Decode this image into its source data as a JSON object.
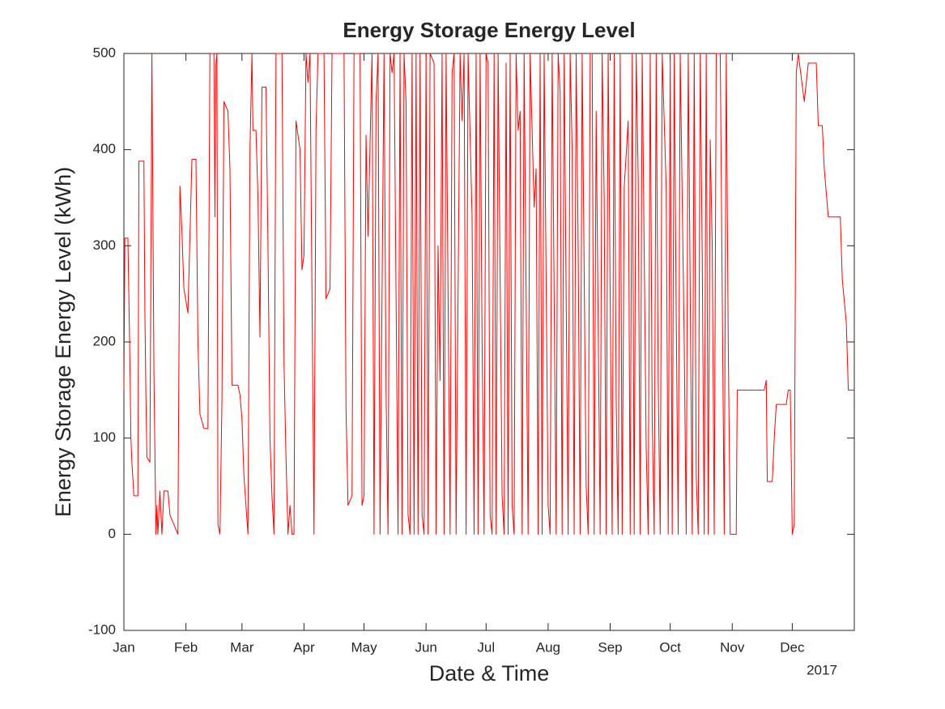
{
  "chart_data": {
    "type": "line",
    "title": "Energy Storage Energy Level",
    "xlabel": "Date & Time",
    "ylabel": "Energy Storage Energy Level (kWh)",
    "x_secondary_label": "2017",
    "color": "#ff0000",
    "xlim": [
      0,
      365
    ],
    "ylim": [
      -100,
      500
    ],
    "xticks": [
      {
        "value": 0,
        "label": "Jan"
      },
      {
        "value": 31,
        "label": "Feb"
      },
      {
        "value": 59,
        "label": "Mar"
      },
      {
        "value": 90,
        "label": "Apr"
      },
      {
        "value": 120,
        "label": "May"
      },
      {
        "value": 151,
        "label": "Jun"
      },
      {
        "value": 181,
        "label": "Jul"
      },
      {
        "value": 212,
        "label": "Aug"
      },
      {
        "value": 243,
        "label": "Sep"
      },
      {
        "value": 273,
        "label": "Oct"
      },
      {
        "value": 304,
        "label": "Nov"
      },
      {
        "value": 334,
        "label": "Dec"
      }
    ],
    "yticks": [
      -100,
      0,
      100,
      200,
      300,
      400,
      500
    ],
    "x": [
      0,
      0.5,
      2,
      3,
      3.5,
      4,
      5,
      7,
      7.5,
      10,
      10.5,
      11,
      11.5,
      13,
      14,
      15,
      16,
      16.5,
      17,
      18,
      19,
      20,
      22,
      23,
      25,
      27,
      28,
      29,
      30,
      32,
      34,
      36,
      37,
      38,
      40,
      42,
      43,
      45,
      45.5,
      46,
      46.5,
      47,
      48,
      49,
      50,
      52,
      53,
      54,
      57,
      58,
      59,
      60,
      62,
      63,
      64,
      64.5,
      66,
      67,
      68,
      69,
      71,
      72,
      73,
      74,
      75,
      76,
      79,
      80,
      81,
      82,
      83,
      84,
      85,
      86,
      88,
      89,
      90,
      91,
      92,
      93,
      95,
      96,
      97,
      100,
      101,
      103,
      104,
      110,
      111,
      112,
      114,
      115,
      118,
      119,
      120,
      121,
      122,
      124,
      125,
      126,
      127,
      128,
      130,
      131,
      132,
      133,
      134,
      135,
      137,
      138,
      139,
      140,
      141,
      142,
      143,
      144,
      145,
      146,
      147,
      148,
      149,
      150,
      151,
      152,
      153,
      155,
      156,
      157,
      158,
      159,
      160,
      161,
      163,
      164,
      165,
      166,
      168,
      169,
      170,
      171,
      172,
      174,
      175,
      176,
      177,
      178,
      179,
      180,
      181,
      182,
      183,
      184,
      185,
      186,
      187,
      189,
      190,
      191,
      192,
      193,
      194,
      195,
      196,
      197,
      198,
      199,
      200,
      202,
      203,
      205,
      206,
      207,
      208,
      209,
      210,
      212,
      213,
      214,
      216,
      217,
      218,
      219,
      220,
      222,
      223,
      224,
      225,
      226,
      227,
      228,
      229,
      231,
      232,
      233,
      234,
      235,
      236,
      238,
      239,
      240,
      241,
      242,
      244,
      245,
      246,
      247,
      248,
      249,
      250,
      252,
      253,
      254,
      255,
      256,
      257,
      258,
      259,
      261,
      262,
      263,
      264,
      265,
      266,
      267,
      268,
      269,
      271,
      272,
      273,
      274,
      275,
      276,
      277,
      278,
      280,
      281,
      282,
      284,
      285,
      286,
      287,
      288,
      289,
      290,
      291,
      292,
      293,
      294,
      295,
      296,
      298,
      300,
      301,
      302,
      303,
      306,
      306.5,
      320,
      321,
      321.5,
      324,
      325,
      326,
      331,
      332,
      333,
      334,
      335,
      336,
      337,
      340,
      342,
      346,
      347,
      349,
      350,
      352,
      358,
      359,
      361,
      362,
      365
    ],
    "values": [
      150,
      308,
      308,
      180,
      100,
      75,
      40,
      40,
      388,
      388,
      230,
      145,
      80,
      75,
      500,
      170,
      0,
      30,
      0,
      45,
      0,
      45,
      45,
      20,
      10,
      0,
      362,
      315,
      255,
      230,
      390,
      390,
      200,
      125,
      110,
      110,
      500,
      500,
      330,
      490,
      500,
      10,
      0,
      140,
      450,
      440,
      380,
      155,
      155,
      145,
      120,
      60,
      0,
      400,
      500,
      420,
      420,
      350,
      205,
      465,
      465,
      300,
      100,
      40,
      0,
      500,
      500,
      180,
      80,
      0,
      30,
      0,
      0,
      430,
      400,
      275,
      290,
      500,
      470,
      500,
      0,
      420,
      500,
      500,
      245,
      255,
      500,
      500,
      130,
      30,
      40,
      500,
      500,
      30,
      40,
      415,
      310,
      500,
      0,
      450,
      500,
      0,
      500,
      150,
      0,
      500,
      480,
      500,
      0,
      500,
      0,
      500,
      450,
      20,
      0,
      500,
      0,
      500,
      0,
      500,
      20,
      0,
      500,
      0,
      500,
      490,
      0,
      300,
      160,
      500,
      0,
      500,
      0,
      480,
      500,
      0,
      500,
      430,
      500,
      0,
      500,
      330,
      0,
      500,
      0,
      500,
      200,
      0,
      500,
      490,
      20,
      0,
      500,
      0,
      500,
      40,
      0,
      490,
      0,
      500,
      30,
      0,
      500,
      420,
      440,
      0,
      500,
      0,
      500,
      340,
      380,
      0,
      500,
      0,
      500,
      30,
      0,
      500,
      0,
      500,
      460,
      0,
      500,
      0,
      500,
      400,
      0,
      500,
      300,
      0,
      500,
      50,
      0,
      500,
      500,
      0,
      440,
      0,
      500,
      350,
      0,
      500,
      0,
      500,
      140,
      0,
      500,
      0,
      360,
      430,
      0,
      500,
      0,
      500,
      370,
      0,
      500,
      90,
      0,
      500,
      120,
      0,
      500,
      160,
      0,
      500,
      360,
      0,
      500,
      0,
      500,
      230,
      0,
      500,
      200,
      0,
      500,
      0,
      500,
      60,
      0,
      500,
      290,
      0,
      500,
      0,
      410,
      300,
      0,
      500,
      500,
      0,
      500,
      200,
      0,
      0,
      150,
      150,
      160,
      55,
      55,
      100,
      135,
      135,
      150,
      150,
      0,
      10,
      480,
      500,
      450,
      490,
      490,
      425,
      425,
      380,
      330,
      330,
      265,
      220,
      150,
      150
    ]
  }
}
